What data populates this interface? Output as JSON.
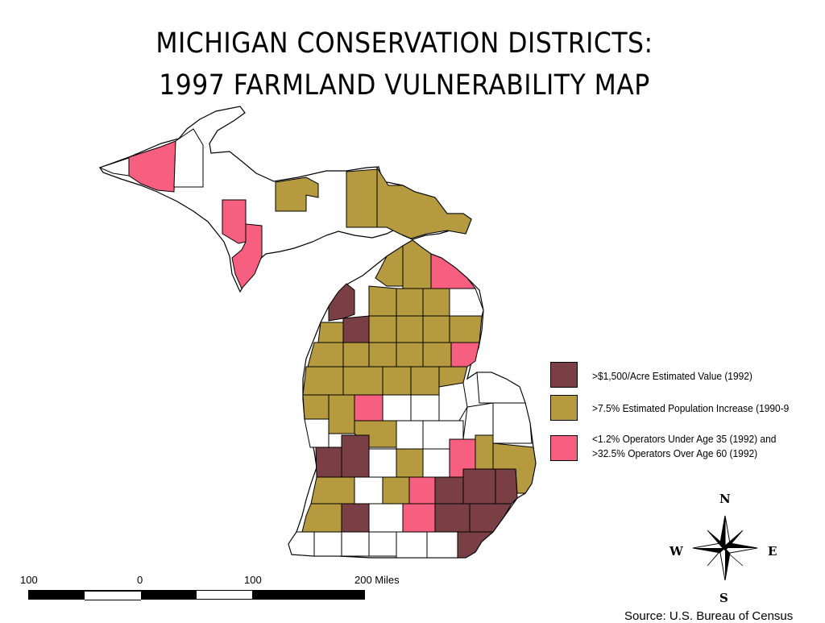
{
  "title": {
    "line1": "MICHIGAN CONSERVATION DISTRICTS:",
    "line2": "1997 FARMLAND VULNERABILITY MAP"
  },
  "colors": {
    "high_value": "#7a3f44",
    "population_increase": "#b59a40",
    "aging_operators": "#f75f80",
    "none": "#ffffff"
  },
  "legend": [
    {
      "label": ">$1,500/Acre Estimated Value (1992)",
      "color": "#7a3f44"
    },
    {
      "label": ">7.5% Estimated Population Increase (1990-9",
      "color": "#b59a40"
    },
    {
      "label": "<1.2% Operators Under Age 35 (1992) and",
      "label2": ">32.5% Operators Over Age 60 (1992)",
      "color": "#f75f80"
    }
  ],
  "scale": {
    "labels": [
      "100",
      "0",
      "100",
      "200 Miles"
    ]
  },
  "compass": {
    "n": "N",
    "s": "S",
    "e": "E",
    "w": "W"
  },
  "source": "Source: U.S. Bureau of Census"
}
